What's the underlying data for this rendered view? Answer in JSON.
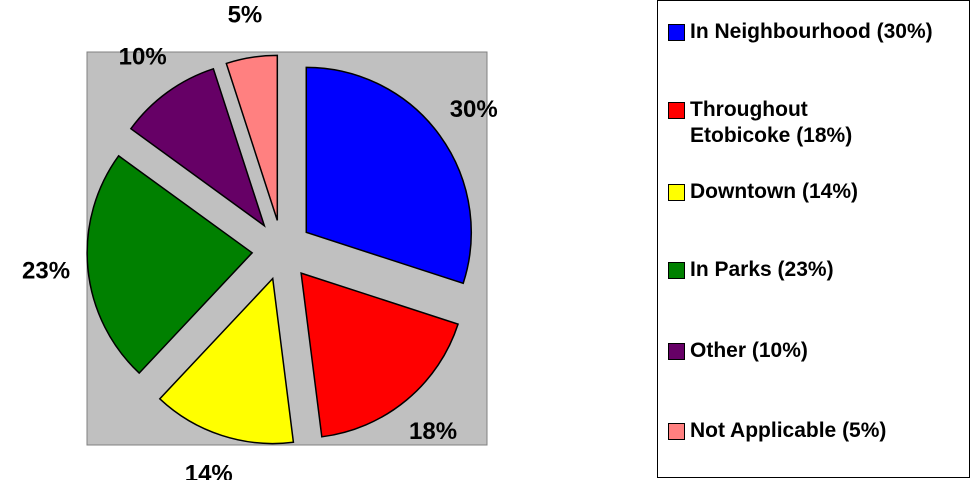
{
  "chart_data": {
    "type": "pie",
    "categories": [
      "In Neighbourhood (30%)",
      "Throughout Etobicoke (18%)",
      "Downtown (14%)",
      "In Parks (23%)",
      "Other (10%)",
      "Not Applicable (5%)"
    ],
    "values": [
      30,
      18,
      14,
      23,
      10,
      5
    ],
    "value_labels": [
      "30%",
      "18%",
      "14%",
      "23%",
      "10%",
      "5%"
    ],
    "colors": [
      "#0000ff",
      "#ff0000",
      "#ffff00",
      "#008000",
      "#660066",
      "#ff8080"
    ],
    "legend": "right"
  }
}
